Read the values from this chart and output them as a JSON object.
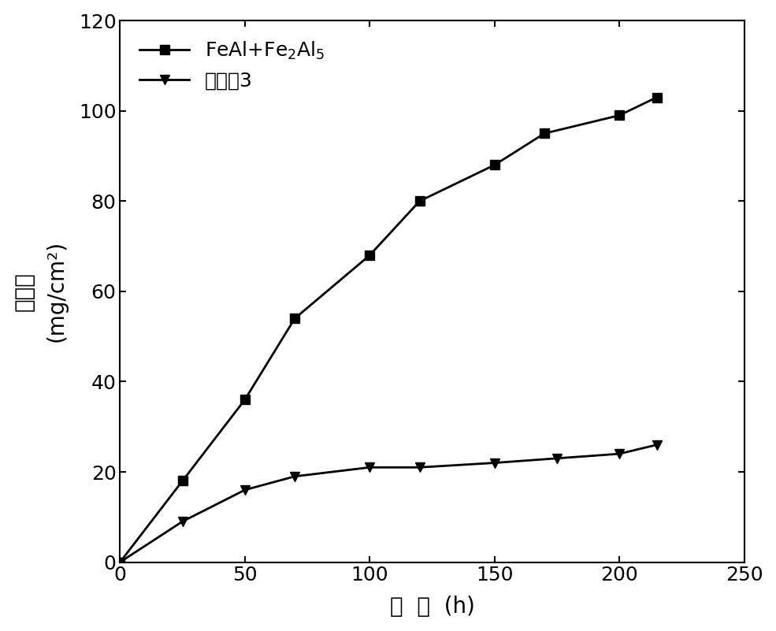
{
  "series1_x": [
    0,
    25,
    50,
    70,
    100,
    120,
    150,
    170,
    200,
    215
  ],
  "series1_y": [
    0,
    18,
    36,
    54,
    68,
    80,
    88,
    95,
    99,
    103
  ],
  "series2_x": [
    0,
    25,
    50,
    70,
    100,
    120,
    150,
    175,
    200,
    215
  ],
  "series2_y": [
    0,
    9,
    16,
    19,
    21,
    21,
    22,
    23,
    24,
    26
  ],
  "xlabel_cn": "时  间",
  "xlabel_en": "(h)",
  "ylabel_line1": "增重量",
  "ylabel_line2": "(mg/cm²)",
  "legend1_math": "FeAl+Fe$_2$Al$_5$",
  "legend2_cn": "实施例3",
  "xlim": [
    0,
    250
  ],
  "ylim": [
    0,
    120
  ],
  "xticks": [
    0,
    50,
    100,
    150,
    200,
    250
  ],
  "yticks": [
    0,
    20,
    40,
    60,
    80,
    100,
    120
  ],
  "line_color": "#000000",
  "marker1": "s",
  "marker2": "v",
  "markersize": 9,
  "linewidth": 2.0,
  "background_color": "#ffffff",
  "tick_fontsize": 18,
  "label_fontsize": 20
}
